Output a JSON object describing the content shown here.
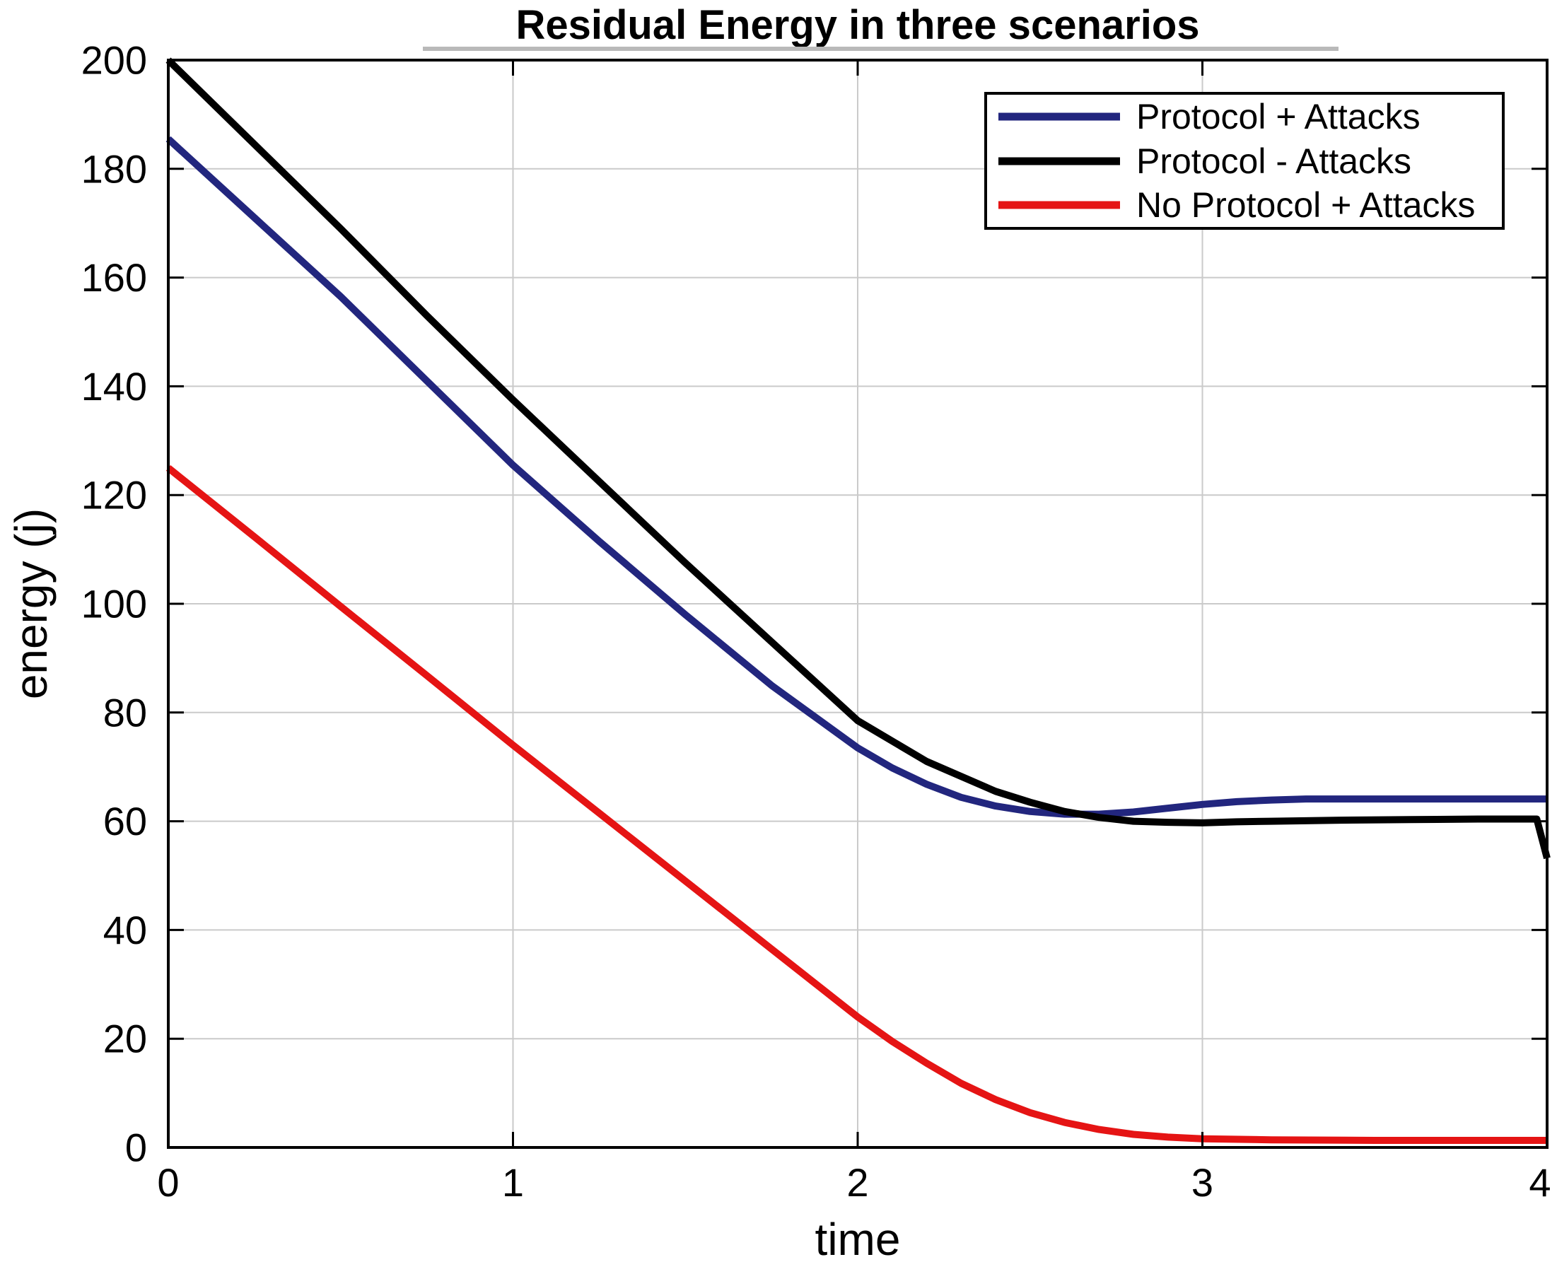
{
  "colors": {
    "background": "#ffffff",
    "axis": "#000000",
    "grid": "#cacaca",
    "title_rule": "#b9b9b9"
  },
  "chart_data": {
    "type": "line",
    "title": "Residual Energy in three scenarios",
    "xlabel": "time",
    "ylabel": "energy (j)",
    "xlim": [
      0,
      4
    ],
    "ylim": [
      0,
      200
    ],
    "x_ticks": [
      0,
      1,
      2,
      3,
      4
    ],
    "y_ticks": [
      0,
      20,
      40,
      60,
      80,
      100,
      120,
      140,
      160,
      180,
      200
    ],
    "grid": true,
    "legend_position": "top-right",
    "series": [
      {
        "name": "Protocol + Attacks",
        "color": "#22267e",
        "points": [
          [
            0,
            185.5
          ],
          [
            0.25,
            171
          ],
          [
            0.5,
            156.5
          ],
          [
            0.75,
            141
          ],
          [
            1,
            125.5
          ],
          [
            1.25,
            111.5
          ],
          [
            1.5,
            98
          ],
          [
            1.75,
            85
          ],
          [
            2,
            73.5
          ],
          [
            2.1,
            69.8
          ],
          [
            2.2,
            66.8
          ],
          [
            2.3,
            64.4
          ],
          [
            2.4,
            62.8
          ],
          [
            2.5,
            61.8
          ],
          [
            2.6,
            61.3
          ],
          [
            2.7,
            61.3
          ],
          [
            2.8,
            61.7
          ],
          [
            2.9,
            62.4
          ],
          [
            3,
            63.1
          ],
          [
            3.1,
            63.6
          ],
          [
            3.2,
            63.9
          ],
          [
            3.3,
            64.1
          ],
          [
            3.5,
            64.1
          ],
          [
            3.75,
            64.1
          ],
          [
            4,
            64.1
          ]
        ]
      },
      {
        "name": "Protocol - Attacks",
        "color": "#000000",
        "points": [
          [
            0,
            200
          ],
          [
            0.25,
            184.5
          ],
          [
            0.5,
            169
          ],
          [
            0.75,
            153
          ],
          [
            1,
            137.5
          ],
          [
            1.25,
            122.5
          ],
          [
            1.5,
            107.5
          ],
          [
            1.75,
            93
          ],
          [
            2,
            78.5
          ],
          [
            2.2,
            71
          ],
          [
            2.4,
            65.5
          ],
          [
            2.5,
            63.5
          ],
          [
            2.6,
            61.8
          ],
          [
            2.7,
            60.7
          ],
          [
            2.8,
            60
          ],
          [
            2.9,
            59.8
          ],
          [
            3,
            59.7
          ],
          [
            3.1,
            59.9
          ],
          [
            3.2,
            60
          ],
          [
            3.4,
            60.2
          ],
          [
            3.6,
            60.3
          ],
          [
            3.8,
            60.4
          ],
          [
            3.97,
            60.4
          ],
          [
            4,
            53.2
          ]
        ]
      },
      {
        "name": "No Protocol + Attacks",
        "color": "#e51414",
        "points": [
          [
            0,
            125
          ],
          [
            0.25,
            112.3
          ],
          [
            0.5,
            99.5
          ],
          [
            0.75,
            86.8
          ],
          [
            1,
            74
          ],
          [
            1.25,
            61.5
          ],
          [
            1.5,
            49
          ],
          [
            1.75,
            36.5
          ],
          [
            2,
            24
          ],
          [
            2.1,
            19.5
          ],
          [
            2.2,
            15.5
          ],
          [
            2.3,
            11.8
          ],
          [
            2.4,
            8.8
          ],
          [
            2.5,
            6.4
          ],
          [
            2.6,
            4.6
          ],
          [
            2.7,
            3.3
          ],
          [
            2.8,
            2.4
          ],
          [
            2.9,
            1.9
          ],
          [
            3,
            1.6
          ],
          [
            3.2,
            1.4
          ],
          [
            3.5,
            1.3
          ],
          [
            4,
            1.3
          ]
        ]
      }
    ]
  }
}
